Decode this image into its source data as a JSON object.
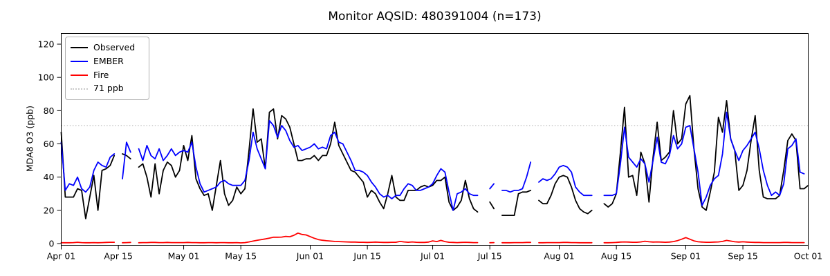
{
  "chart_data": {
    "type": "line",
    "title": "Monitor AQSID: 480391004 (n=173)",
    "xlabel": "",
    "ylabel": "MDA8 O3 (ppb)",
    "ylim": [
      0,
      126
    ],
    "yticks": [
      0,
      20,
      40,
      60,
      80,
      100,
      120
    ],
    "grid": "off",
    "x_start": "Apr 01",
    "x_end": "Oct 01",
    "x_days_total": 183,
    "x_tick_labels": [
      "Apr 01",
      "Apr 15",
      "May 01",
      "May 15",
      "Jun 01",
      "Jun 15",
      "Jul 01",
      "Jul 15",
      "Aug 01",
      "Aug 15",
      "Sep 01",
      "Sep 15",
      "Oct 01"
    ],
    "x_tick_days": [
      0,
      14,
      30,
      44,
      61,
      75,
      91,
      105,
      122,
      136,
      153,
      167,
      183
    ],
    "threshold": {
      "label": "71 ppb",
      "value": 71,
      "color": "#c9c9c9",
      "style": "dotted"
    },
    "legend": {
      "position": "upper-left",
      "entries": [
        {
          "label": "Observed",
          "color": "#000000",
          "style": "solid"
        },
        {
          "label": "EMBER",
          "color": "#0000ff",
          "style": "solid"
        },
        {
          "label": "Fire",
          "color": "#ff0000",
          "style": "solid"
        },
        {
          "label": "71 ppb",
          "color": "#c9c9c9",
          "style": "dotted"
        }
      ]
    },
    "series": [
      {
        "name": "Observed",
        "color": "#000000",
        "values": [
          67,
          28,
          28,
          28,
          33,
          32,
          15,
          28,
          41,
          20,
          44,
          45,
          47,
          53,
          null,
          54,
          53,
          51,
          null,
          46,
          48,
          40,
          28,
          48,
          30,
          44,
          49,
          47,
          40,
          44,
          59,
          50,
          65,
          39,
          33,
          29,
          30,
          20,
          35,
          50,
          30,
          23,
          26,
          34,
          30,
          33,
          56,
          81,
          61,
          63,
          45,
          79,
          81,
          63,
          77,
          75,
          70,
          60,
          50,
          50,
          51,
          51,
          53,
          50,
          53,
          53,
          60,
          73,
          59,
          54,
          49,
          44,
          43,
          40,
          37,
          28,
          32,
          30,
          25,
          21,
          30,
          41,
          28,
          26,
          26,
          32,
          32,
          32,
          34,
          35,
          34,
          35,
          38,
          38,
          40,
          25,
          20,
          22,
          26,
          38,
          27,
          21,
          19,
          null,
          null,
          25,
          21,
          null,
          17,
          17,
          17,
          17,
          30,
          31,
          31,
          32,
          null,
          26,
          24,
          24,
          29,
          36,
          40,
          41,
          40,
          34,
          26,
          21,
          19,
          18,
          20,
          null,
          null,
          24,
          22,
          24,
          30,
          55,
          82,
          40,
          41,
          29,
          55,
          48,
          25,
          52,
          73,
          50,
          52,
          55,
          80,
          60,
          63,
          84,
          89,
          57,
          33,
          22,
          20,
          31,
          43,
          76,
          67,
          86,
          63,
          56,
          32,
          35,
          44,
          62,
          77,
          44,
          28,
          27,
          27,
          27,
          29,
          44,
          62,
          66,
          62,
          33,
          33,
          35
        ]
      },
      {
        "name": "EMBER",
        "color": "#0000ff",
        "values": [
          61,
          32,
          36,
          35,
          40,
          33,
          31,
          34,
          44,
          49,
          47,
          46,
          52,
          54,
          null,
          39,
          61,
          55,
          null,
          57,
          50,
          59,
          53,
          51,
          57,
          50,
          53,
          57,
          53,
          55,
          56,
          55,
          61,
          46,
          36,
          31,
          32,
          33,
          34,
          37,
          38,
          36,
          35,
          35,
          35,
          38,
          50,
          67,
          57,
          51,
          45,
          74,
          71,
          64,
          71,
          68,
          62,
          58,
          59,
          56,
          57,
          58,
          60,
          57,
          58,
          57,
          65,
          67,
          61,
          60,
          55,
          50,
          44,
          44,
          43,
          41,
          37,
          34,
          30,
          28,
          29,
          27,
          29,
          29,
          33,
          36,
          35,
          32,
          32,
          33,
          34,
          36,
          41,
          45,
          43,
          31,
          20,
          30,
          31,
          33,
          30,
          29,
          29,
          null,
          null,
          33,
          36,
          null,
          32,
          32,
          31,
          32,
          32,
          33,
          40,
          49,
          null,
          37,
          39,
          38,
          39,
          42,
          46,
          47,
          46,
          43,
          34,
          31,
          29,
          29,
          29,
          null,
          null,
          29,
          29,
          29,
          30,
          48,
          70,
          52,
          49,
          46,
          51,
          48,
          37,
          50,
          64,
          49,
          48,
          53,
          65,
          57,
          60,
          70,
          71,
          57,
          43,
          23,
          28,
          35,
          39,
          41,
          54,
          79,
          63,
          56,
          50,
          56,
          59,
          63,
          67,
          57,
          44,
          35,
          29,
          31,
          29,
          36,
          57,
          59,
          63,
          43,
          42,
          null
        ]
      },
      {
        "name": "Fire",
        "color": "#ff0000",
        "values": [
          0.5,
          0.5,
          0.5,
          0.6,
          0.8,
          0.6,
          0.5,
          0.5,
          0.6,
          0.5,
          0.6,
          0.7,
          0.8,
          0.8,
          null,
          0.5,
          0.6,
          0.7,
          null,
          0.5,
          0.6,
          0.6,
          0.7,
          0.7,
          0.6,
          0.6,
          0.7,
          0.6,
          0.6,
          0.6,
          0.6,
          0.7,
          0.6,
          0.6,
          0.5,
          0.5,
          0.6,
          0.6,
          0.5,
          0.6,
          0.6,
          0.5,
          0.5,
          0.6,
          0.4,
          0.6,
          1.0,
          1.5,
          2.0,
          2.4,
          2.8,
          3.3,
          3.8,
          3.8,
          3.9,
          4.3,
          4.1,
          5.0,
          6.3,
          5.5,
          5.2,
          4.2,
          3.2,
          2.4,
          2.0,
          1.7,
          1.5,
          1.3,
          1.2,
          1.1,
          1.0,
          0.9,
          0.9,
          0.8,
          0.8,
          0.7,
          0.8,
          0.9,
          0.8,
          0.7,
          0.7,
          0.8,
          0.8,
          1.3,
          1.0,
          0.8,
          1.0,
          0.8,
          0.7,
          0.7,
          0.9,
          1.6,
          1.2,
          1.9,
          1.2,
          0.8,
          0.7,
          0.6,
          0.7,
          0.8,
          0.7,
          0.6,
          0.6,
          null,
          null,
          0.5,
          0.6,
          null,
          0.5,
          0.5,
          0.5,
          0.6,
          0.6,
          0.6,
          0.7,
          0.7,
          null,
          0.5,
          0.5,
          0.6,
          0.6,
          0.6,
          0.6,
          0.7,
          0.7,
          0.6,
          0.6,
          0.5,
          0.5,
          0.5,
          0.5,
          null,
          null,
          0.5,
          0.5,
          0.6,
          0.7,
          0.9,
          1.0,
          0.9,
          0.8,
          0.8,
          1.0,
          1.4,
          1.1,
          0.9,
          1.0,
          0.9,
          0.8,
          0.9,
          1.2,
          1.8,
          2.6,
          3.6,
          2.6,
          1.6,
          1.1,
          0.9,
          0.8,
          0.8,
          0.9,
          1.0,
          1.3,
          1.9,
          1.5,
          1.1,
          0.9,
          1.1,
          0.9,
          0.8,
          0.7,
          0.7,
          0.6,
          0.6,
          0.6,
          0.6,
          0.6,
          0.7,
          0.7,
          0.6,
          0.6,
          0.6,
          0.6,
          null
        ]
      }
    ]
  }
}
